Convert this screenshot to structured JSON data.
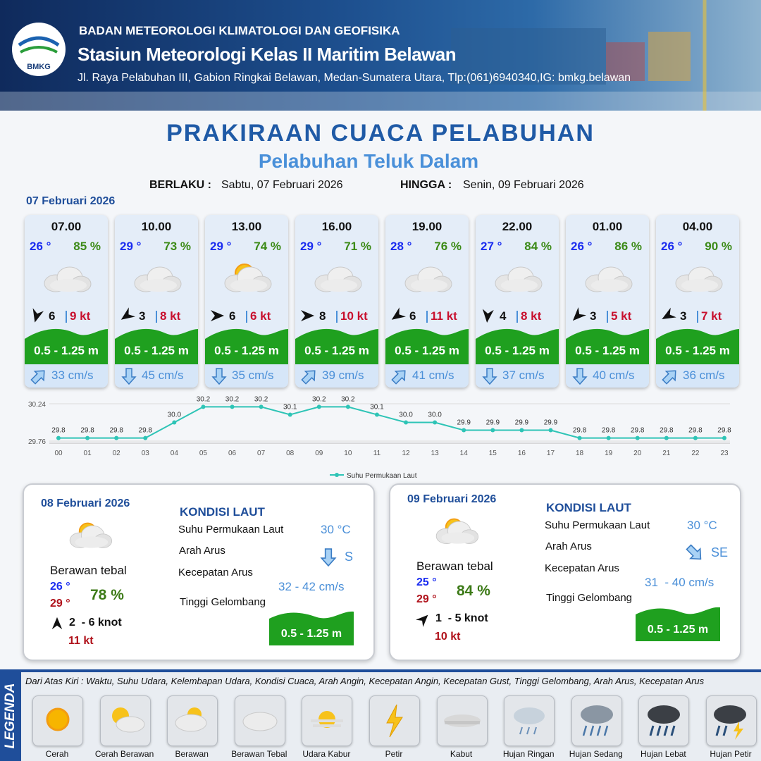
{
  "header": {
    "logo": "BMKG",
    "agency": "BADAN METEOROLOGI KLIMATOLOGI DAN GEOFISIKA",
    "station": "Stasiun Meteorologi Kelas II Maritim Belawan",
    "address": "Jl. Raya Pelabuhan III, Gabion Ringkai Belawan, Medan-Sumatera Utara, Tlp:(061)6940340,IG: bmkg.belawan"
  },
  "title": "PRAKIRAAN CUACA PELABUHAN",
  "subtitle": "Pelabuhan Teluk Dalam",
  "validity": {
    "from_label": "BERLAKU :",
    "from": "Sabtu, 07 Februari 2026",
    "to_label": "HINGGA :",
    "to": "Senin, 09 Februari 2026"
  },
  "day1": {
    "date": "07 Februari 2026",
    "slots": [
      {
        "time": "07.00",
        "temp": "26 °",
        "humidity": "85 %",
        "wind": "6",
        "gust": "9 kt",
        "wave": "0.5 - 1.25 m",
        "current": "33 cm/s"
      },
      {
        "time": "10.00",
        "temp": "29 °",
        "humidity": "73 %",
        "wind": "3",
        "gust": "8 kt",
        "wave": "0.5 - 1.25 m",
        "current": "45 cm/s"
      },
      {
        "time": "13.00",
        "temp": "29 °",
        "humidity": "74 %",
        "wind": "6",
        "gust": "6 kt",
        "wave": "0.5 - 1.25 m",
        "current": "35 cm/s"
      },
      {
        "time": "16.00",
        "temp": "29 °",
        "humidity": "71 %",
        "wind": "8",
        "gust": "10 kt",
        "wave": "0.5 - 1.25 m",
        "current": "39 cm/s"
      },
      {
        "time": "19.00",
        "temp": "28 °",
        "humidity": "76 %",
        "wind": "6",
        "gust": "11 kt",
        "wave": "0.5 - 1.25 m",
        "current": "41 cm/s"
      },
      {
        "time": "22.00",
        "temp": "27 °",
        "humidity": "84 %",
        "wind": "4",
        "gust": "8 kt",
        "wave": "0.5 - 1.25 m",
        "current": "37 cm/s"
      },
      {
        "time": "01.00",
        "temp": "26 °",
        "humidity": "86 %",
        "wind": "3",
        "gust": "5 kt",
        "wave": "0.5 - 1.25 m",
        "current": "40 cm/s"
      },
      {
        "time": "04.00",
        "temp": "26 °",
        "humidity": "90 %",
        "wind": "3",
        "gust": "7 kt",
        "wave": "0.5 - 1.25 m",
        "current": "36 cm/s"
      }
    ]
  },
  "chart_data": {
    "type": "line",
    "categories": [
      "00",
      "01",
      "02",
      "03",
      "04",
      "05",
      "06",
      "07",
      "08",
      "09",
      "10",
      "11",
      "12",
      "13",
      "14",
      "15",
      "16",
      "17",
      "18",
      "19",
      "20",
      "21",
      "22",
      "23"
    ],
    "series": [
      {
        "name": "Suhu Permukaan Laut",
        "color": "#2ec4b6",
        "values": [
          29.8,
          29.8,
          29.8,
          29.8,
          30.0,
          30.2,
          30.2,
          30.2,
          30.1,
          30.2,
          30.2,
          30.1,
          30.0,
          30.0,
          29.9,
          29.9,
          29.9,
          29.9,
          29.8,
          29.8,
          29.8,
          29.8,
          29.8,
          29.8
        ],
        "value_labels": [
          "29.8",
          "29.8",
          "29.8",
          "29.8",
          "30.0",
          "30.2",
          "30.2",
          "30.2",
          "30.1",
          "30.2",
          "30.2",
          "30.1",
          "30.0",
          "30.0",
          "29.9",
          "29.9",
          "29.9",
          "29.9",
          "29.8",
          "29.8",
          "29.8",
          "29.8",
          "29.8",
          "29.8"
        ]
      }
    ],
    "ylim": [
      29.76,
      30.24
    ],
    "yticks": [
      29.76,
      30.24
    ],
    "grid": true,
    "legend": "bottom"
  },
  "outlook": [
    {
      "date": "08 Februari 2026",
      "condition": "Berawan tebal",
      "temp_min": "26 °",
      "temp_max": "29 °",
      "humidity": "78 %",
      "wind": "2  - 6 knot",
      "gust": "11 kt",
      "sea_title": "KONDISI LAUT",
      "sea_temp_label": "Suhu Permukaan Laut",
      "sea_temp": "30 °C",
      "current_dir_label": "Arah Arus",
      "current_dir": "S",
      "current_speed_label": "Kecepatan Arus",
      "current_speed": "32 - 42 cm/s",
      "wave_label": "Tinggi Gelombang",
      "wave": "0.5 - 1.25 m"
    },
    {
      "date": "09 Februari 2026",
      "condition": "Berawan tebal",
      "temp_min": "25 °",
      "temp_max": "29 °",
      "humidity": "84 %",
      "wind": "1  - 5 knot",
      "gust": "10 kt",
      "sea_title": "KONDISI LAUT",
      "sea_temp_label": "Suhu Permukaan Laut",
      "sea_temp": "30 °C",
      "current_dir_label": "Arah Arus",
      "current_dir": "SE",
      "current_speed_label": "Kecepatan Arus",
      "current_speed": "31  - 40 cm/s",
      "wave_label": "Tinggi Gelombang",
      "wave": "0.5 - 1.25 m"
    }
  ],
  "legend": {
    "title": "LEGENDA",
    "description": "Dari Atas Kiri : Waktu, Suhu Udara, Kelembapan Udara, Kondisi Cuaca, Arah Angin, Kecepatan Angin, Kecepatan Gust, Tinggi Gelombang, Arah Arus, Kecepatan Arus",
    "items": [
      "Cerah",
      "Cerah Berawan",
      "Berawan",
      "Berawan Tebal",
      "Udara Kabur",
      "Petir",
      "Kabut",
      "Hujan Ringan",
      "Hujan Sedang",
      "Hujan Lebat",
      "Hujan Petir"
    ]
  }
}
